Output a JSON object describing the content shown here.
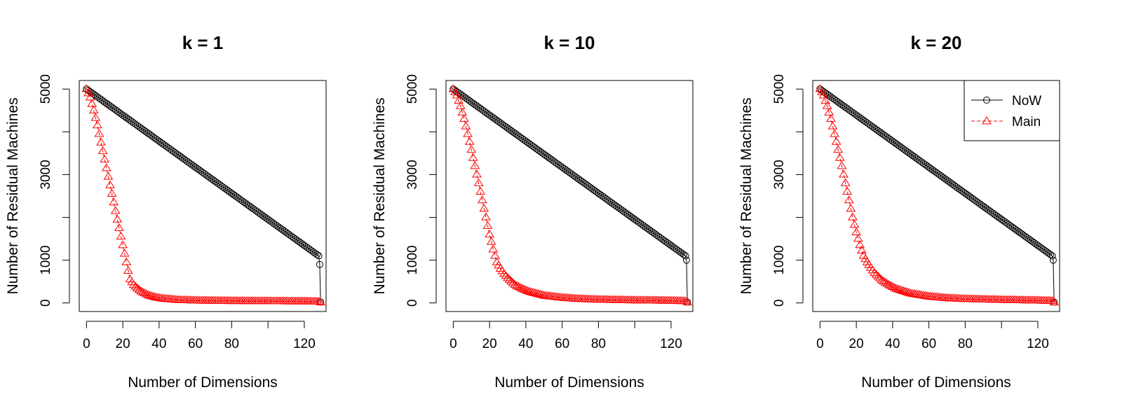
{
  "chart_data": [
    {
      "type": "line",
      "title": "k = 1",
      "xlabel": "Number of Dimensions",
      "ylabel": "Number of Residual Machines",
      "xlim": [
        -4,
        132
      ],
      "ylim": [
        -200,
        5200
      ],
      "xticks": [
        0,
        20,
        40,
        60,
        80,
        100,
        120
      ],
      "xtick_labels": [
        "0",
        "20",
        "40",
        "60",
        "80",
        "",
        "120"
      ],
      "yticks": [
        0,
        1000,
        2000,
        3000,
        4000,
        5000
      ],
      "ytick_labels": [
        "0",
        "1000",
        "",
        "3000",
        "",
        "5000"
      ],
      "legend": null,
      "series": [
        {
          "name": "NoW",
          "color": "#000000",
          "marker": "circle",
          "line": "solid",
          "points": [
            [
              0,
              5000
            ],
            [
              128,
              1100
            ],
            [
              128.5,
              900
            ],
            [
              129,
              20
            ]
          ]
        },
        {
          "name": "Main",
          "color": "#ff0000",
          "marker": "triangle",
          "line": "dashed",
          "points": [
            [
              0,
              5000
            ],
            [
              2,
              4800
            ],
            [
              4,
              4500
            ],
            [
              6,
              4150
            ],
            [
              8,
              3750
            ],
            [
              10,
              3350
            ],
            [
              12,
              2950
            ],
            [
              14,
              2550
            ],
            [
              16,
              2150
            ],
            [
              18,
              1750
            ],
            [
              20,
              1350
            ],
            [
              22,
              950
            ],
            [
              24,
              550
            ],
            [
              26,
              420
            ],
            [
              28,
              340
            ],
            [
              30,
              270
            ],
            [
              34,
              180
            ],
            [
              38,
              130
            ],
            [
              42,
              100
            ],
            [
              50,
              70
            ],
            [
              60,
              55
            ],
            [
              80,
              45
            ],
            [
              100,
              40
            ],
            [
              120,
              35
            ],
            [
              128,
              30
            ],
            [
              129,
              10
            ]
          ]
        }
      ]
    },
    {
      "type": "line",
      "title": "k = 10",
      "xlabel": "Number of Dimensions",
      "ylabel": "Number of Residual Machines",
      "xlim": [
        -4,
        132
      ],
      "ylim": [
        -200,
        5200
      ],
      "xticks": [
        0,
        20,
        40,
        60,
        80,
        100,
        120
      ],
      "xtick_labels": [
        "0",
        "20",
        "40",
        "60",
        "80",
        "",
        "120"
      ],
      "yticks": [
        0,
        1000,
        2000,
        3000,
        4000,
        5000
      ],
      "ytick_labels": [
        "0",
        "1000",
        "",
        "3000",
        "",
        "5000"
      ],
      "legend": null,
      "series": [
        {
          "name": "NoW",
          "color": "#000000",
          "marker": "circle",
          "line": "solid",
          "points": [
            [
              0,
              5000
            ],
            [
              128,
              1100
            ],
            [
              128.5,
              1000
            ],
            [
              129,
              20
            ]
          ]
        },
        {
          "name": "Main",
          "color": "#ff0000",
          "marker": "triangle",
          "line": "dashed",
          "points": [
            [
              0,
              5000
            ],
            [
              2,
              4850
            ],
            [
              4,
              4600
            ],
            [
              6,
              4300
            ],
            [
              8,
              3950
            ],
            [
              10,
              3580
            ],
            [
              12,
              3200
            ],
            [
              14,
              2800
            ],
            [
              16,
              2400
            ],
            [
              18,
              2000
            ],
            [
              20,
              1600
            ],
            [
              22,
              1250
            ],
            [
              24,
              950
            ],
            [
              26,
              800
            ],
            [
              28,
              680
            ],
            [
              30,
              580
            ],
            [
              34,
              420
            ],
            [
              38,
              330
            ],
            [
              42,
              260
            ],
            [
              50,
              170
            ],
            [
              60,
              120
            ],
            [
              70,
              90
            ],
            [
              80,
              75
            ],
            [
              100,
              60
            ],
            [
              120,
              50
            ],
            [
              128,
              40
            ],
            [
              129,
              10
            ]
          ]
        }
      ]
    },
    {
      "type": "line",
      "title": "k = 20",
      "xlabel": "Number of Dimensions",
      "ylabel": "Number of Residual Machines",
      "xlim": [
        -4,
        132
      ],
      "ylim": [
        -200,
        5200
      ],
      "xticks": [
        0,
        20,
        40,
        60,
        80,
        100,
        120
      ],
      "xtick_labels": [
        "0",
        "20",
        "40",
        "60",
        "80",
        "",
        "120"
      ],
      "yticks": [
        0,
        1000,
        2000,
        3000,
        4000,
        5000
      ],
      "ytick_labels": [
        "0",
        "1000",
        "",
        "3000",
        "",
        "5000"
      ],
      "legend": "top-right",
      "series": [
        {
          "name": "NoW",
          "color": "#000000",
          "marker": "circle",
          "line": "solid",
          "points": [
            [
              0,
              5000
            ],
            [
              128,
              1100
            ],
            [
              128.5,
              1000
            ],
            [
              129,
              20
            ]
          ]
        },
        {
          "name": "Main",
          "color": "#ff0000",
          "marker": "triangle",
          "line": "dashed",
          "points": [
            [
              0,
              5000
            ],
            [
              2,
              4850
            ],
            [
              4,
              4600
            ],
            [
              6,
              4300
            ],
            [
              8,
              3950
            ],
            [
              10,
              3580
            ],
            [
              12,
              3200
            ],
            [
              14,
              2800
            ],
            [
              16,
              2400
            ],
            [
              18,
              2000
            ],
            [
              20,
              1650
            ],
            [
              22,
              1350
            ],
            [
              24,
              1100
            ],
            [
              26,
              950
            ],
            [
              28,
              820
            ],
            [
              30,
              700
            ],
            [
              34,
              530
            ],
            [
              38,
              420
            ],
            [
              42,
              330
            ],
            [
              50,
              220
            ],
            [
              60,
              150
            ],
            [
              70,
              110
            ],
            [
              80,
              90
            ],
            [
              100,
              70
            ],
            [
              120,
              55
            ],
            [
              128,
              45
            ],
            [
              129,
              10
            ]
          ]
        }
      ]
    }
  ]
}
